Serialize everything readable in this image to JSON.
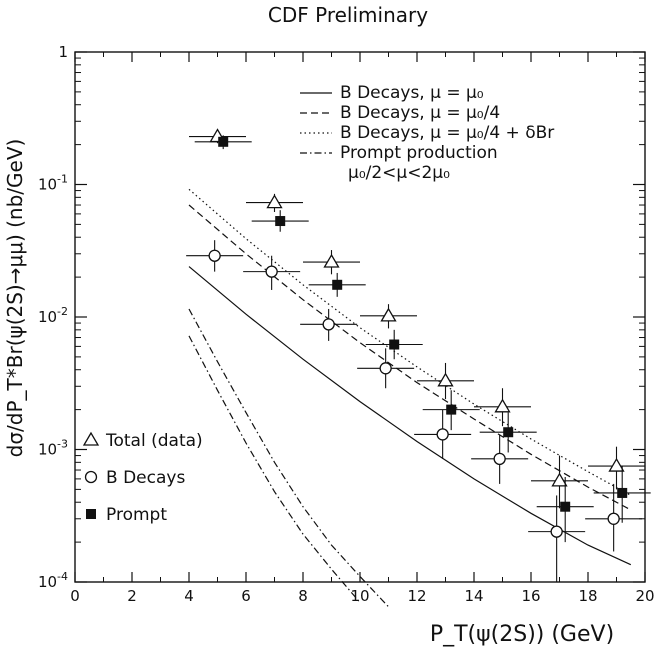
{
  "chart_data": {
    "type": "scatter",
    "title": "CDF Preliminary",
    "xlabel": "P_T(ψ(2S)) (GeV)",
    "ylabel": "dσ/dP_T*Br(ψ(2S)→μμ) (nb/GeV)",
    "xlim": [
      0,
      20
    ],
    "ylim": [
      0.0001,
      1
    ],
    "yscale": "log",
    "grid": false,
    "x_ticks": [
      "0",
      "2",
      "4",
      "6",
      "8",
      "10",
      "12",
      "14",
      "16",
      "18",
      "20"
    ],
    "y_ticks": [
      {
        "value": 1,
        "base": "1",
        "exp": ""
      },
      {
        "value": 0.1,
        "base": "10",
        "exp": "-1"
      },
      {
        "value": 0.01,
        "base": "10",
        "exp": "-2"
      },
      {
        "value": 0.001,
        "base": "10",
        "exp": "-3"
      },
      {
        "value": 0.0001,
        "base": "10",
        "exp": "-4"
      }
    ],
    "series": [
      {
        "name": "Total (data)",
        "marker": "open-triangle",
        "points": [
          {
            "x": 5.0,
            "y": 0.23,
            "xerr": 1.0,
            "ylo": 0.205,
            "yhi": 0.255
          },
          {
            "x": 7.0,
            "y": 0.073,
            "xerr": 1.0,
            "ylo": 0.062,
            "yhi": 0.085
          },
          {
            "x": 9.0,
            "y": 0.026,
            "xerr": 1.0,
            "ylo": 0.021,
            "yhi": 0.032
          },
          {
            "x": 11.0,
            "y": 0.0102,
            "xerr": 1.0,
            "ylo": 0.0082,
            "yhi": 0.0125
          },
          {
            "x": 13.0,
            "y": 0.0033,
            "xerr": 1.0,
            "ylo": 0.0024,
            "yhi": 0.0045
          },
          {
            "x": 15.0,
            "y": 0.0021,
            "xerr": 1.0,
            "ylo": 0.0015,
            "yhi": 0.0029
          },
          {
            "x": 17.0,
            "y": 0.00058,
            "xerr": 1.0,
            "ylo": 0.00036,
            "yhi": 0.0009
          },
          {
            "x": 19.0,
            "y": 0.00075,
            "xerr": 1.0,
            "ylo": 0.0005,
            "yhi": 0.00105
          }
        ]
      },
      {
        "name": "B Decays",
        "marker": "open-circle",
        "points": [
          {
            "x": 4.9,
            "y": 0.029,
            "xerr": 1.0,
            "ylo": 0.022,
            "yhi": 0.038
          },
          {
            "x": 6.9,
            "y": 0.022,
            "xerr": 1.0,
            "ylo": 0.016,
            "yhi": 0.029
          },
          {
            "x": 8.9,
            "y": 0.0088,
            "xerr": 1.0,
            "ylo": 0.0066,
            "yhi": 0.0115
          },
          {
            "x": 10.9,
            "y": 0.0041,
            "xerr": 1.0,
            "ylo": 0.0029,
            "yhi": 0.0058
          },
          {
            "x": 12.9,
            "y": 0.0013,
            "xerr": 1.0,
            "ylo": 0.00085,
            "yhi": 0.002
          },
          {
            "x": 14.9,
            "y": 0.00085,
            "xerr": 1.0,
            "ylo": 0.00055,
            "yhi": 0.0013
          },
          {
            "x": 16.9,
            "y": 0.00024,
            "xerr": 1.0,
            "ylo": 0.0001,
            "yhi": 0.00045
          },
          {
            "x": 18.9,
            "y": 0.0003,
            "xerr": 1.0,
            "ylo": 0.00017,
            "yhi": 0.00055
          }
        ]
      },
      {
        "name": "Prompt",
        "marker": "filled-square",
        "points": [
          {
            "x": 5.2,
            "y": 0.21,
            "xerr": 1.0,
            "ylo": 0.185,
            "yhi": 0.235
          },
          {
            "x": 7.2,
            "y": 0.053,
            "xerr": 1.0,
            "ylo": 0.044,
            "yhi": 0.064
          },
          {
            "x": 9.2,
            "y": 0.0175,
            "xerr": 1.0,
            "ylo": 0.0142,
            "yhi": 0.0215
          },
          {
            "x": 11.2,
            "y": 0.0062,
            "xerr": 1.0,
            "ylo": 0.0048,
            "yhi": 0.008
          },
          {
            "x": 13.2,
            "y": 0.002,
            "xerr": 1.0,
            "ylo": 0.0014,
            "yhi": 0.0028
          },
          {
            "x": 15.2,
            "y": 0.00135,
            "xerr": 1.0,
            "ylo": 0.00095,
            "yhi": 0.0019
          },
          {
            "x": 17.2,
            "y": 0.00037,
            "xerr": 1.0,
            "ylo": 0.0002,
            "yhi": 0.00062
          },
          {
            "x": 19.2,
            "y": 0.00047,
            "xerr": 1.0,
            "ylo": 0.00028,
            "yhi": 0.00075
          }
        ]
      }
    ],
    "curves": [
      {
        "name": "B Decays, μ = μ₀",
        "dash": "solid",
        "x": [
          4,
          6,
          8,
          10,
          12,
          14,
          16,
          18,
          19.5
        ],
        "y": [
          0.024,
          0.0105,
          0.0048,
          0.0023,
          0.00115,
          0.0006,
          0.00033,
          0.00019,
          0.000135
        ]
      },
      {
        "name": "B Decays, μ = μ₀/4",
        "dash": "dashed",
        "x": [
          4,
          6,
          8,
          10,
          12,
          14,
          16,
          18,
          19.5
        ],
        "y": [
          0.07,
          0.03,
          0.0135,
          0.0064,
          0.0032,
          0.0017,
          0.00092,
          0.00052,
          0.00035
        ]
      },
      {
        "name": "B Decays, μ = μ₀/4 + δBr",
        "dash": "dotted",
        "x": [
          4,
          6,
          8,
          10,
          12,
          14,
          16,
          18,
          19.5
        ],
        "y": [
          0.092,
          0.039,
          0.0175,
          0.0083,
          0.0042,
          0.0022,
          0.0012,
          0.00068,
          0.00045
        ]
      },
      {
        "name": "Prompt production",
        "dash": "dashdot",
        "x": [
          4,
          5,
          6,
          7,
          8,
          9,
          10,
          11
        ],
        "y": [
          0.0115,
          0.0046,
          0.0019,
          0.0008,
          0.00037,
          0.00019,
          0.00011,
          6.5e-05
        ]
      },
      {
        "name": "Prompt production",
        "dash": "dashdot",
        "x": [
          4,
          5,
          6,
          7,
          8,
          9,
          10
        ],
        "y": [
          0.0072,
          0.0028,
          0.00112,
          0.00048,
          0.00023,
          0.000125,
          7e-05
        ]
      }
    ],
    "legend_lines": {
      "placement": "top-right",
      "entries": [
        {
          "label": "B Decays, μ = μ₀",
          "dash": "solid"
        },
        {
          "label": "B Decays, μ = μ₀/4",
          "dash": "dashed"
        },
        {
          "label": "B Decays, μ = μ₀/4 + δBr",
          "dash": "dotted"
        },
        {
          "label": "Prompt production",
          "dash": "dashdot"
        }
      ],
      "note": "μ₀/2<μ<2μ₀"
    },
    "legend_markers": {
      "placement": "bottom-left",
      "entries": [
        {
          "label": "Total (data)",
          "marker": "open-triangle"
        },
        {
          "label": "B Decays",
          "marker": "open-circle"
        },
        {
          "label": "Prompt",
          "marker": "filled-square"
        }
      ]
    }
  }
}
